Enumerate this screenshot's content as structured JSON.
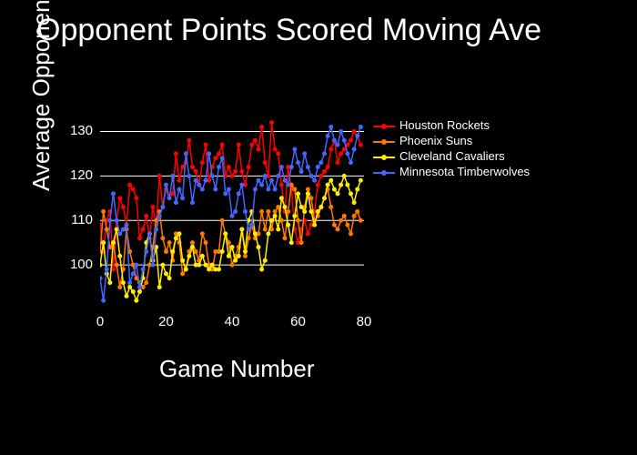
{
  "chart": {
    "type": "line",
    "title": "Opponent Points Scored Moving Ave",
    "title_fontsize": 34,
    "xlabel": "Game Number",
    "ylabel": "Average Opponent Points",
    "label_fontsize": 26,
    "background_color": "#000000",
    "text_color": "#ffffff",
    "grid_color": "#ffffff",
    "xlim": [
      0,
      80
    ],
    "ylim": [
      90,
      135
    ],
    "xticks": [
      0,
      20,
      40,
      60,
      80
    ],
    "yticks": [
      100,
      110,
      120,
      130
    ],
    "tick_fontsize": 15,
    "legend_fontsize": 13,
    "line_width": 1.5,
    "marker_size": 2.5,
    "series": [
      {
        "label": "Houston Rockets",
        "color": "#ff0000",
        "values": [
          109,
          103,
          110,
          112,
          99,
          110,
          115,
          113,
          109,
          118,
          117,
          115,
          106,
          108,
          111,
          106,
          113,
          109,
          120,
          113,
          117,
          115,
          116,
          125,
          119,
          122,
          123,
          128,
          122,
          121,
          118,
          123,
          127,
          119,
          122,
          124,
          125,
          127,
          120,
          122,
          120,
          121,
          127,
          121,
          118,
          122,
          127,
          128,
          126,
          131,
          123,
          120,
          132,
          126,
          125,
          118,
          112,
          122,
          117,
          108,
          105,
          108,
          110,
          107,
          109,
          112,
          118,
          120,
          121,
          122,
          126,
          128,
          123,
          125,
          126,
          127,
          128,
          130,
          129,
          127
        ]
      },
      {
        "label": "Phoenix Suns",
        "color": "#ff7700",
        "values": [
          103,
          112,
          108,
          104,
          105,
          100,
          95,
          99,
          108,
          103,
          100,
          97,
          96,
          95,
          96,
          100,
          104,
          110,
          112,
          106,
          103,
          105,
          101,
          107,
          105,
          98,
          99,
          103,
          105,
          103,
          101,
          107,
          105,
          100,
          99,
          103,
          103,
          110,
          107,
          105,
          100,
          102,
          104,
          108,
          102,
          106,
          109,
          106,
          107,
          112,
          108,
          112,
          108,
          112,
          113,
          110,
          106,
          112,
          118,
          117,
          110,
          105,
          113,
          117,
          115,
          110,
          111,
          113,
          115,
          117,
          113,
          109,
          108,
          110,
          111,
          109,
          107,
          111,
          112,
          110
        ]
      },
      {
        "label": "Cleveland Cavaliers",
        "color": "#ffee00",
        "values": [
          100,
          105,
          98,
          96,
          105,
          108,
          102,
          96,
          93,
          95,
          94,
          92,
          94,
          97,
          105,
          107,
          101,
          104,
          95,
          100,
          98,
          97,
          103,
          106,
          107,
          101,
          99,
          102,
          104,
          100,
          100,
          102,
          100,
          99,
          100,
          99,
          99,
          103,
          107,
          102,
          104,
          101,
          102,
          108,
          103,
          110,
          112,
          107,
          104,
          99,
          101,
          107,
          110,
          111,
          108,
          115,
          113,
          109,
          105,
          111,
          116,
          113,
          112,
          116,
          112,
          109,
          112,
          113,
          115,
          118,
          119,
          117,
          116,
          118,
          120,
          118,
          116,
          114,
          117,
          119
        ]
      },
      {
        "label": "Minnesota Timberwolves",
        "color": "#4466ff",
        "values": [
          97,
          92,
          99,
          110,
          116,
          110,
          107,
          108,
          109,
          96,
          98,
          100,
          95,
          99,
          103,
          107,
          100,
          108,
          111,
          113,
          118,
          115,
          120,
          114,
          117,
          115,
          125,
          120,
          114,
          119,
          118,
          117,
          119,
          125,
          120,
          117,
          122,
          124,
          116,
          117,
          111,
          112,
          116,
          118,
          112,
          108,
          109,
          117,
          119,
          118,
          120,
          117,
          119,
          117,
          120,
          122,
          119,
          118,
          122,
          126,
          123,
          121,
          125,
          122,
          120,
          119,
          122,
          123,
          125,
          129,
          131,
          128,
          127,
          130,
          128,
          125,
          123,
          126,
          129,
          131
        ]
      }
    ]
  }
}
